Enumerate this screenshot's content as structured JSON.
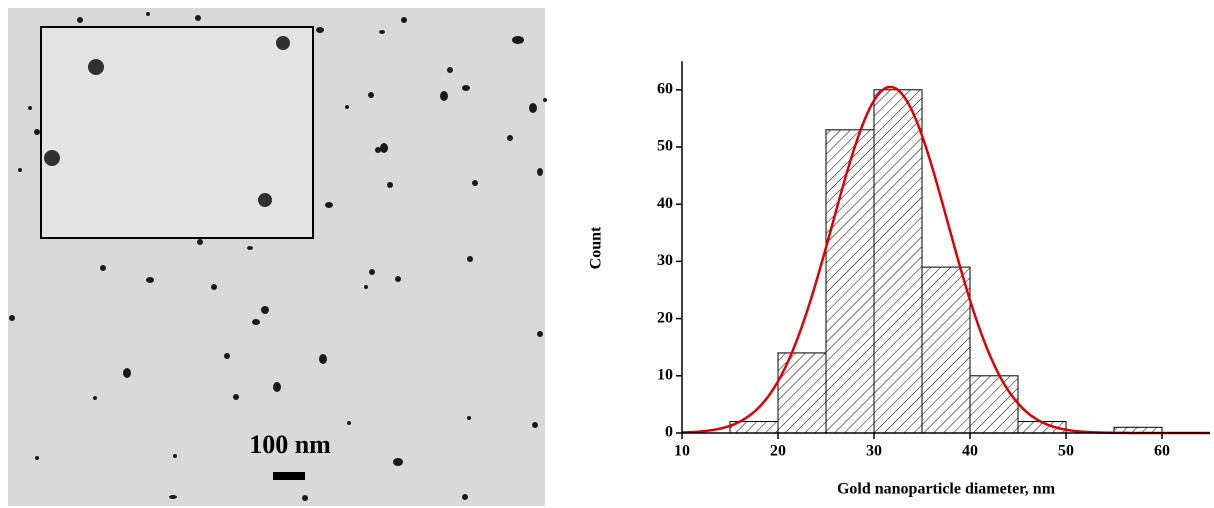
{
  "micrograph": {
    "scale_bar_label": "100 nm"
  },
  "chart_data": {
    "type": "histogram",
    "x_label": "Gold nanoparticle diameter, nm",
    "y_label": "Count",
    "bins": [
      15,
      20,
      25,
      30,
      35,
      40,
      45,
      50,
      55,
      60
    ],
    "counts": [
      2,
      14,
      53,
      60,
      29,
      10,
      2,
      0,
      1
    ],
    "bar_color": "#000000",
    "xlim": [
      10,
      65
    ],
    "ylim": [
      0,
      65
    ],
    "xticks": [
      10,
      20,
      30,
      40,
      50,
      60
    ],
    "yticks": [
      0,
      10,
      20,
      30,
      40,
      50,
      60
    ],
    "fit": {
      "type": "gaussian",
      "amplitude": 60.5,
      "center": 31.7,
      "sigma": 6,
      "color": "#e00000"
    }
  }
}
